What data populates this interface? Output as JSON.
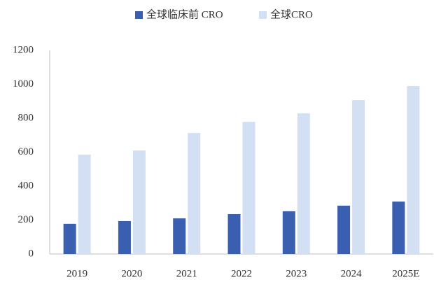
{
  "chart_data": {
    "type": "bar",
    "categories": [
      "2019",
      "2020",
      "2021",
      "2022",
      "2023",
      "2024",
      "2025E"
    ],
    "series": [
      {
        "name": "全球临床前 CRO",
        "color": "#3a5fb0",
        "values": [
          178,
          194,
          210,
          235,
          252,
          285,
          309
        ]
      },
      {
        "name": "全球CRO",
        "color": "#d3dff2",
        "values": [
          586,
          610,
          713,
          779,
          829,
          907,
          990
        ]
      }
    ],
    "ylim": [
      0,
      1200
    ],
    "yticks": [
      0,
      200,
      400,
      600,
      800,
      1000,
      1200
    ],
    "grid": false,
    "legend": "top"
  }
}
